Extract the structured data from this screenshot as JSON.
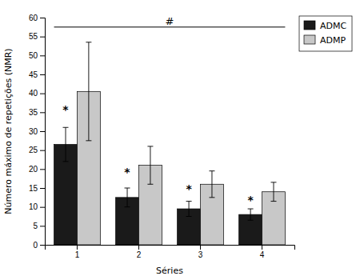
{
  "chart_data": {
    "type": "bar",
    "xlabel": "Séries",
    "ylabel": "Número máximo de repetições (NMR)",
    "categories": [
      "1",
      "2",
      "3",
      "4"
    ],
    "series": [
      {
        "name": "ADMC",
        "color": "#1a1a1a",
        "values": [
          26.5,
          12.5,
          9.5,
          8.0
        ],
        "errors": [
          4.5,
          2.5,
          2.0,
          1.5
        ]
      },
      {
        "name": "ADMP",
        "color": "#c8c8c8",
        "values": [
          40.5,
          21.0,
          16.0,
          14.0
        ],
        "errors": [
          13.0,
          5.0,
          3.5,
          2.5
        ]
      }
    ],
    "annotations": [
      {
        "text": "*",
        "x": "1",
        "y": 36.0
      },
      {
        "text": "*",
        "x": "2",
        "y": 19.5
      },
      {
        "text": "*",
        "x": "3",
        "y": 15.0
      },
      {
        "text": "*",
        "x": "4",
        "y": 12.0
      },
      {
        "text": "#",
        "x": [
          "1",
          "4"
        ],
        "y": 58.2,
        "line_y": 57.5
      }
    ],
    "ylim": [
      0,
      60
    ],
    "yticks": [
      0,
      5,
      10,
      15,
      20,
      25,
      30,
      35,
      40,
      45,
      50,
      55,
      60
    ],
    "grid": false,
    "legend": "upper right"
  }
}
